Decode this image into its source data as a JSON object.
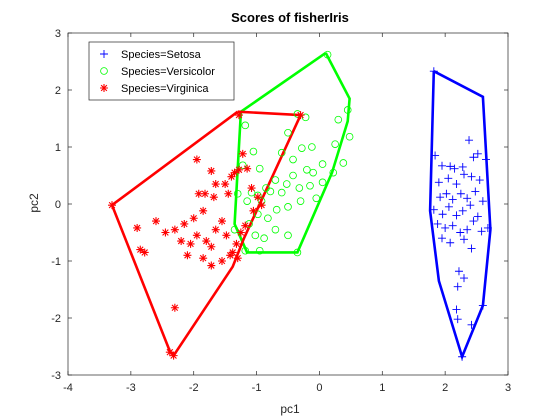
{
  "chart_data": {
    "type": "scatter",
    "title": "Scores of fisherIris",
    "xlabel": "pc1",
    "ylabel": "pc2",
    "xlim": [
      -4,
      3
    ],
    "ylim": [
      -3,
      3
    ],
    "xticks": [
      "-4",
      "-3",
      "-2",
      "-1",
      "0",
      "1",
      "2",
      "3"
    ],
    "yticks": [
      "-3",
      "-2",
      "-1",
      "0",
      "1",
      "2",
      "3"
    ],
    "grid": false,
    "legend_position": "top-left",
    "series": [
      {
        "name": "Species=Setosa",
        "color": "#0000ff",
        "marker": "plus",
        "points": [
          [
            1.84,
            0.85
          ],
          [
            1.95,
            0.67
          ],
          [
            2.08,
            0.66
          ],
          [
            2.15,
            0.62
          ],
          [
            2.28,
            0.65
          ],
          [
            2.38,
            1.12
          ],
          [
            2.45,
            0.82
          ],
          [
            2.52,
            0.88
          ],
          [
            2.65,
            0.78
          ],
          [
            1.9,
            0.38
          ],
          [
            2.05,
            0.45
          ],
          [
            2.18,
            0.35
          ],
          [
            2.3,
            0.52
          ],
          [
            2.42,
            0.48
          ],
          [
            2.55,
            0.42
          ],
          [
            1.92,
            0.12
          ],
          [
            2.02,
            0.18
          ],
          [
            2.12,
            0.08
          ],
          [
            2.25,
            0.18
          ],
          [
            2.35,
            0.1
          ],
          [
            2.48,
            0.22
          ],
          [
            2.6,
            0.05
          ],
          [
            1.82,
            -0.1
          ],
          [
            1.96,
            -0.18
          ],
          [
            2.06,
            -0.05
          ],
          [
            2.18,
            -0.2
          ],
          [
            2.28,
            -0.12
          ],
          [
            2.4,
            -0.02
          ],
          [
            2.52,
            -0.22
          ],
          [
            1.88,
            -0.35
          ],
          [
            2.0,
            -0.42
          ],
          [
            2.12,
            -0.38
          ],
          [
            2.24,
            -0.5
          ],
          [
            2.35,
            -0.45
          ],
          [
            2.45,
            -0.3
          ],
          [
            2.58,
            -0.48
          ],
          [
            1.95,
            -0.6
          ],
          [
            2.08,
            -0.68
          ],
          [
            2.3,
            -0.62
          ],
          [
            2.42,
            -0.78
          ],
          [
            2.22,
            -1.18
          ],
          [
            2.3,
            -1.3
          ],
          [
            2.2,
            -1.45
          ],
          [
            2.18,
            -1.85
          ],
          [
            2.2,
            -2.02
          ],
          [
            2.42,
            -2.12
          ],
          [
            2.68,
            -0.42
          ],
          [
            2.6,
            -1.78
          ],
          [
            2.27,
            -2.68
          ],
          [
            1.82,
            2.33
          ]
        ],
        "hull": [
          [
            1.82,
            2.33
          ],
          [
            2.6,
            1.88
          ],
          [
            2.72,
            -0.45
          ],
          [
            2.6,
            -1.78
          ],
          [
            2.27,
            -2.68
          ],
          [
            1.9,
            -1.35
          ],
          [
            1.76,
            -0.12
          ],
          [
            1.82,
            2.33
          ]
        ]
      },
      {
        "name": "Species=Versicolor",
        "color": "#00ff00",
        "marker": "circle",
        "points": [
          [
            0.13,
            2.62
          ],
          [
            0.45,
            1.65
          ],
          [
            0.48,
            1.18
          ],
          [
            0.3,
            1.48
          ],
          [
            0.38,
            0.72
          ],
          [
            0.25,
            1.05
          ],
          [
            0.22,
            0.55
          ],
          [
            0.05,
            0.7
          ],
          [
            -0.1,
            0.55
          ],
          [
            -0.2,
            0.6
          ],
          [
            -0.32,
            0.28
          ],
          [
            -0.42,
            0.5
          ],
          [
            -0.52,
            0.35
          ],
          [
            -0.6,
            0.2
          ],
          [
            -0.7,
            0.42
          ],
          [
            -0.78,
            0.22
          ],
          [
            -0.85,
            0.28
          ],
          [
            -0.92,
            0.05
          ],
          [
            -0.98,
            0.15
          ],
          [
            -1.08,
            0.2
          ],
          [
            -1.15,
            0.05
          ],
          [
            -1.18,
            1.38
          ],
          [
            -1.05,
            0.92
          ],
          [
            -1.22,
            0.68
          ],
          [
            -0.95,
            0.62
          ],
          [
            -0.15,
            0.32
          ],
          [
            0.05,
            0.38
          ],
          [
            -0.05,
            0.1
          ],
          [
            -0.3,
            0.05
          ],
          [
            -0.5,
            -0.05
          ],
          [
            -0.68,
            -0.1
          ],
          [
            -0.82,
            -0.25
          ],
          [
            -0.98,
            -0.18
          ],
          [
            -1.12,
            -0.35
          ],
          [
            -1.02,
            -0.55
          ],
          [
            -0.88,
            -0.6
          ],
          [
            -0.7,
            -0.45
          ],
          [
            -0.5,
            -0.55
          ],
          [
            -0.35,
            -0.85
          ],
          [
            -1.18,
            -0.82
          ],
          [
            -0.95,
            -0.82
          ],
          [
            -1.35,
            -0.45
          ],
          [
            -1.3,
            0.18
          ],
          [
            -0.22,
            1.52
          ],
          [
            -0.35,
            1.58
          ],
          [
            -0.5,
            1.25
          ],
          [
            -0.28,
            0.98
          ],
          [
            -0.42,
            0.78
          ],
          [
            -0.6,
            0.9
          ],
          [
            -0.12,
            1.0
          ]
        ],
        "hull": [
          [
            0.1,
            2.65
          ],
          [
            0.48,
            1.85
          ],
          [
            0.45,
            1.45
          ],
          [
            0.2,
            0.55
          ],
          [
            -0.35,
            -0.85
          ],
          [
            -1.15,
            -0.85
          ],
          [
            -1.35,
            -0.35
          ],
          [
            -1.25,
            1.62
          ],
          [
            0.1,
            2.65
          ]
        ]
      },
      {
        "name": "Species=Virginica",
        "color": "#ff0000",
        "marker": "star",
        "points": [
          [
            -1.28,
            1.56
          ],
          [
            -0.3,
            1.56
          ],
          [
            -3.3,
            -0.02
          ],
          [
            -2.38,
            -2.6
          ],
          [
            -2.32,
            -2.66
          ],
          [
            -2.3,
            -1.82
          ],
          [
            -2.9,
            -0.42
          ],
          [
            -2.78,
            -0.85
          ],
          [
            -2.85,
            -0.8
          ],
          [
            -2.6,
            -0.3
          ],
          [
            -2.45,
            -0.5
          ],
          [
            -2.3,
            -0.45
          ],
          [
            -2.2,
            -0.65
          ],
          [
            -2.05,
            -0.7
          ],
          [
            -2.1,
            -0.9
          ],
          [
            -1.95,
            -0.55
          ],
          [
            -1.8,
            -0.65
          ],
          [
            -1.72,
            -0.75
          ],
          [
            -1.65,
            -0.45
          ],
          [
            -1.55,
            -0.3
          ],
          [
            -1.48,
            -0.55
          ],
          [
            -1.38,
            -0.85
          ],
          [
            -1.32,
            -0.7
          ],
          [
            -1.25,
            -0.5
          ],
          [
            -1.18,
            -0.38
          ],
          [
            -2.15,
            -0.35
          ],
          [
            -2.0,
            -0.25
          ],
          [
            -1.85,
            -0.95
          ],
          [
            -1.72,
            -1.08
          ],
          [
            -1.55,
            -1.0
          ],
          [
            -1.42,
            -0.9
          ],
          [
            -1.3,
            -0.95
          ],
          [
            -1.92,
            0.18
          ],
          [
            -1.82,
            0.18
          ],
          [
            -1.65,
            0.35
          ],
          [
            -1.5,
            0.35
          ],
          [
            -1.4,
            0.48
          ],
          [
            -1.28,
            0.6
          ],
          [
            -1.15,
            0.62
          ],
          [
            -1.08,
            0.28
          ],
          [
            -0.98,
            0.12
          ],
          [
            -0.92,
            -0.02
          ],
          [
            -1.05,
            -0.12
          ],
          [
            -1.68,
            0.12
          ],
          [
            -1.95,
            0.78
          ],
          [
            -1.72,
            0.58
          ],
          [
            -1.45,
            0.18
          ],
          [
            -1.85,
            -0.12
          ],
          [
            -1.22,
            0.88
          ],
          [
            -1.35,
            0.55
          ]
        ],
        "hull": [
          [
            -1.3,
            1.62
          ],
          [
            -0.3,
            1.56
          ],
          [
            -1.2,
            -0.6
          ],
          [
            -1.38,
            -1.1
          ],
          [
            -2.32,
            -2.66
          ],
          [
            -2.38,
            -2.58
          ],
          [
            -3.3,
            -0.02
          ],
          [
            -1.3,
            1.62
          ]
        ]
      }
    ]
  }
}
